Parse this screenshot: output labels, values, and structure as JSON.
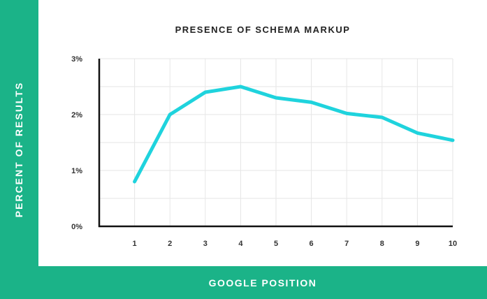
{
  "chart_data": {
    "type": "line",
    "title": "PRESENCE OF SCHEMA MARKUP",
    "xlabel": "GOOGLE POSITION",
    "ylabel": "PERCENT OF RESULTS",
    "x": [
      1,
      2,
      3,
      4,
      5,
      6,
      7,
      8,
      9,
      10
    ],
    "series": [
      {
        "values": [
          0.8,
          2.0,
          2.4,
          2.5,
          2.3,
          2.22,
          2.02,
          1.95,
          1.67,
          1.54
        ]
      }
    ],
    "ylim": [
      0,
      3
    ],
    "xlim": [
      0,
      10
    ],
    "y_ticks": [
      0,
      1,
      2,
      3
    ],
    "y_tick_labels": [
      "0%",
      "1%",
      "2%",
      "3%"
    ],
    "x_tick_labels": [
      "1",
      "2",
      "3",
      "4",
      "5",
      "6",
      "7",
      "8",
      "9",
      "10"
    ],
    "grid": true,
    "colors": {
      "line": "#1fd3dd",
      "band": "#1bb388",
      "grid": "#e6e6e6",
      "axis": "#111111"
    }
  }
}
